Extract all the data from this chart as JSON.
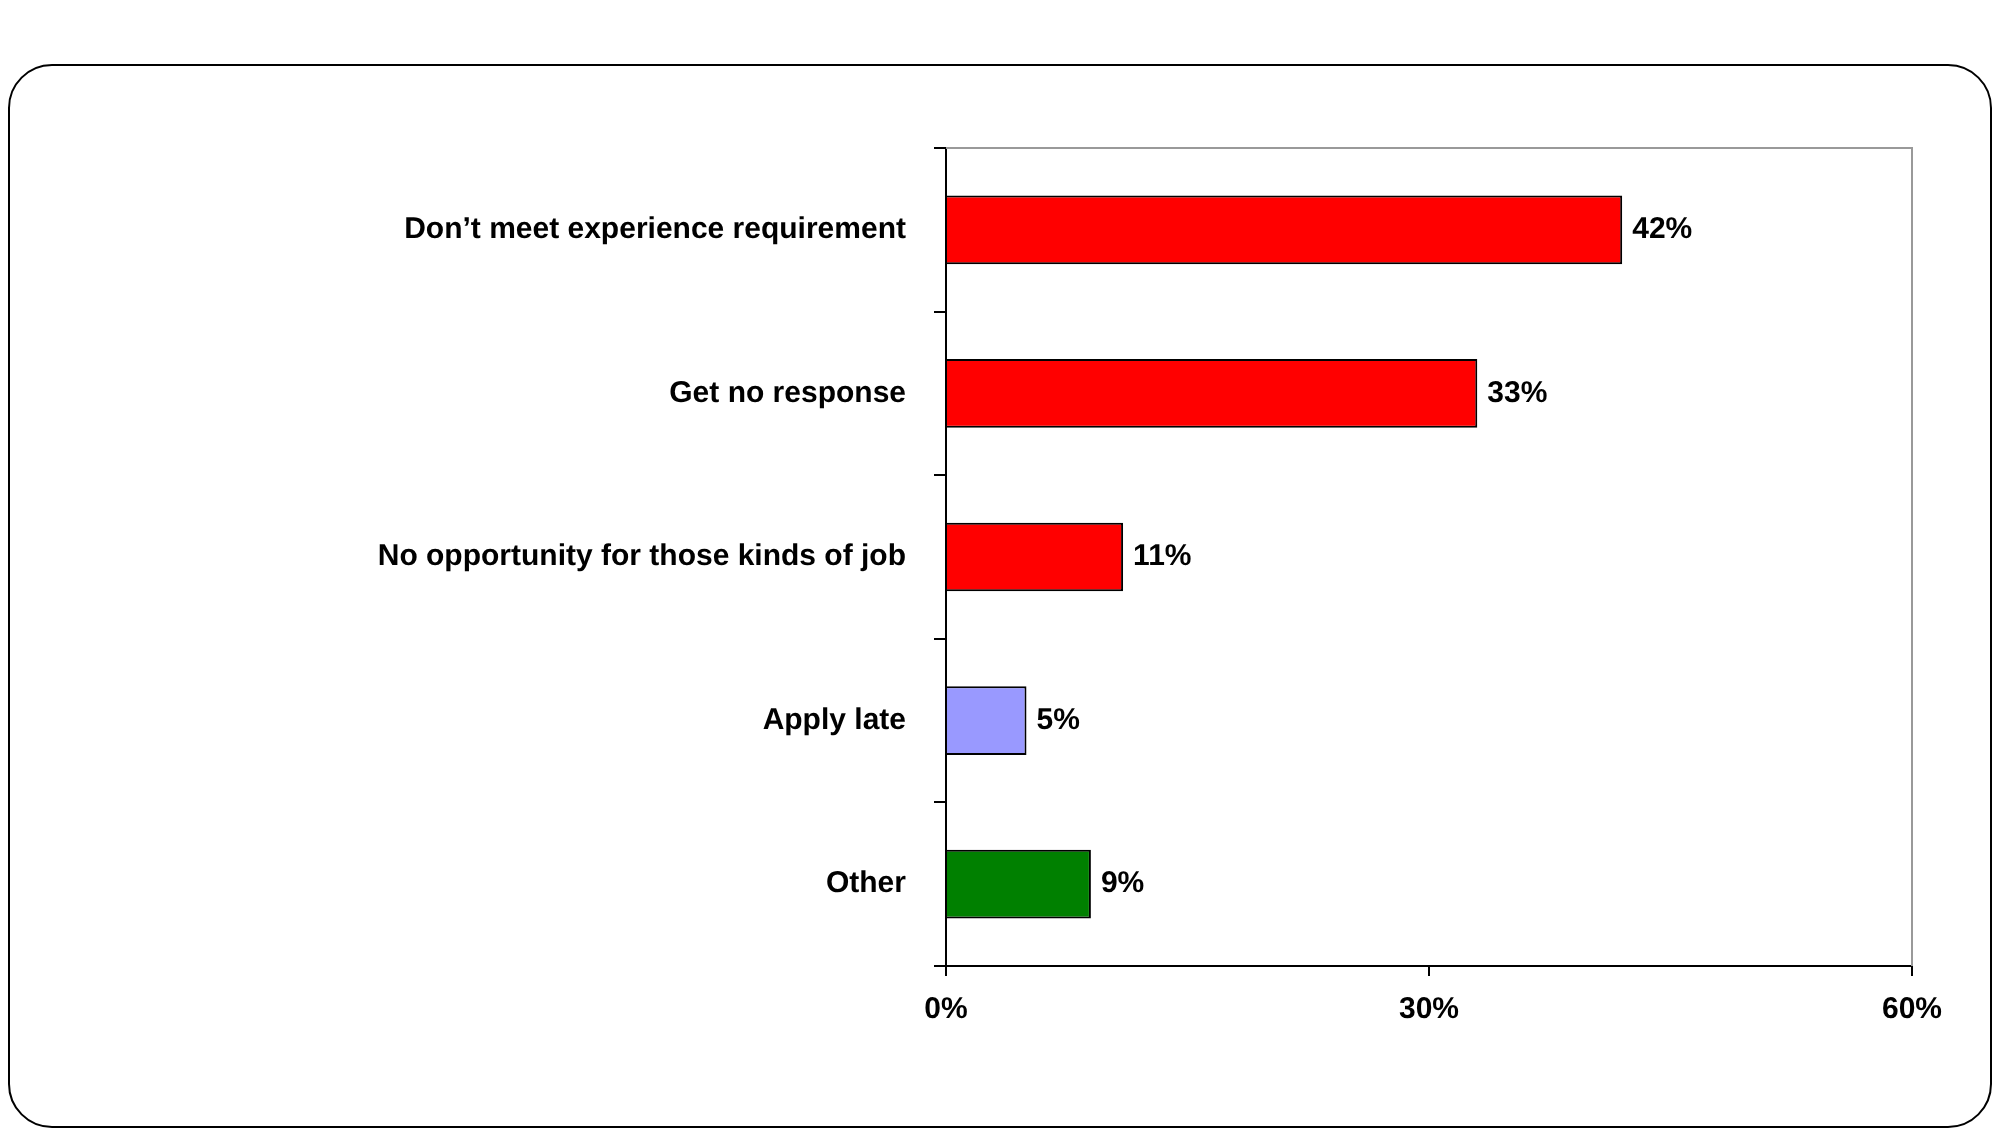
{
  "chart_data": {
    "type": "bar",
    "orientation": "horizontal",
    "categories": [
      "Don’t meet experience requirement",
      "Get no response",
      "No opportunity for those kinds of job",
      "Apply late",
      "Other"
    ],
    "values": [
      42,
      33,
      11,
      5,
      9
    ],
    "colors": [
      "#ff0000",
      "#ff0000",
      "#ff0000",
      "#9999ff",
      "#008000"
    ],
    "value_labels": [
      "42%",
      "33%",
      "11%",
      "5%",
      "9%"
    ],
    "xlim": [
      0,
      60
    ],
    "xticks": [
      {
        "value": 0,
        "label": "0%"
      },
      {
        "value": 30,
        "label": "30%"
      },
      {
        "value": 60,
        "label": "60%"
      }
    ],
    "grid": false,
    "legend": false
  }
}
